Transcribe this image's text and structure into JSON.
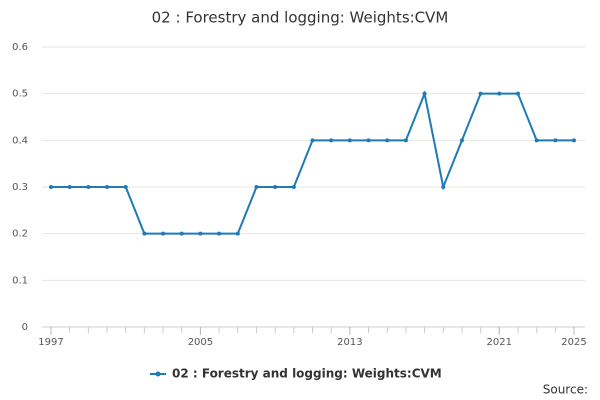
{
  "chart_data": {
    "type": "line",
    "title": "02 : Forestry and logging: Weights:CVM",
    "x": [
      1997,
      1998,
      1999,
      2000,
      2001,
      2002,
      2003,
      2004,
      2005,
      2006,
      2007,
      2008,
      2009,
      2010,
      2011,
      2012,
      2013,
      2014,
      2015,
      2016,
      2017,
      2018,
      2019,
      2020,
      2021,
      2022,
      2023,
      2024,
      2025
    ],
    "series": [
      {
        "name": "02 : Forestry and logging: Weights:CVM",
        "color": "#1f7ab5",
        "values": [
          0.3,
          0.3,
          0.3,
          0.3,
          0.3,
          0.2,
          0.2,
          0.2,
          0.2,
          0.2,
          0.2,
          0.3,
          0.3,
          0.3,
          0.4,
          0.4,
          0.4,
          0.4,
          0.4,
          0.4,
          0.5,
          0.3,
          0.4,
          0.5,
          0.5,
          0.5,
          0.4,
          0.4,
          0.4
        ]
      }
    ],
    "xlim": [
      1997,
      2025
    ],
    "xticks": [
      1997,
      2005,
      2013,
      2021,
      2025
    ],
    "ylim": [
      0,
      0.6
    ],
    "yticks": [
      0,
      0.1,
      0.2,
      0.3,
      0.4,
      0.5,
      0.6
    ],
    "grid": true,
    "legend": "bottom",
    "source": "Source:"
  }
}
